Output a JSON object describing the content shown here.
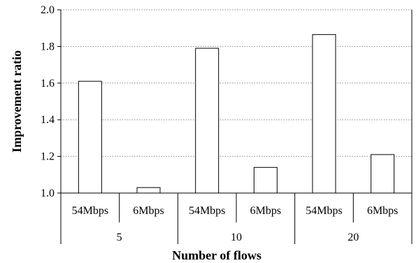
{
  "chart_data": {
    "type": "bar",
    "title": "",
    "xlabel": "Number of flows",
    "ylabel": "Improvement ratio",
    "ylim": [
      1.0,
      2.0
    ],
    "yticks": [
      "1.0",
      "1.2",
      "1.4",
      "1.6",
      "1.8",
      "2.0"
    ],
    "grid": true,
    "groups": [
      "5",
      "10",
      "20"
    ],
    "categories": [
      "54Mbps",
      "6Mbps",
      "54Mbps",
      "6Mbps",
      "54Mbps",
      "6Mbps"
    ],
    "values": [
      1.61,
      1.03,
      1.79,
      1.14,
      1.865,
      1.21
    ],
    "bar_fill": "#ffffff",
    "bar_stroke": "#000000",
    "grid_color": "#888888"
  }
}
